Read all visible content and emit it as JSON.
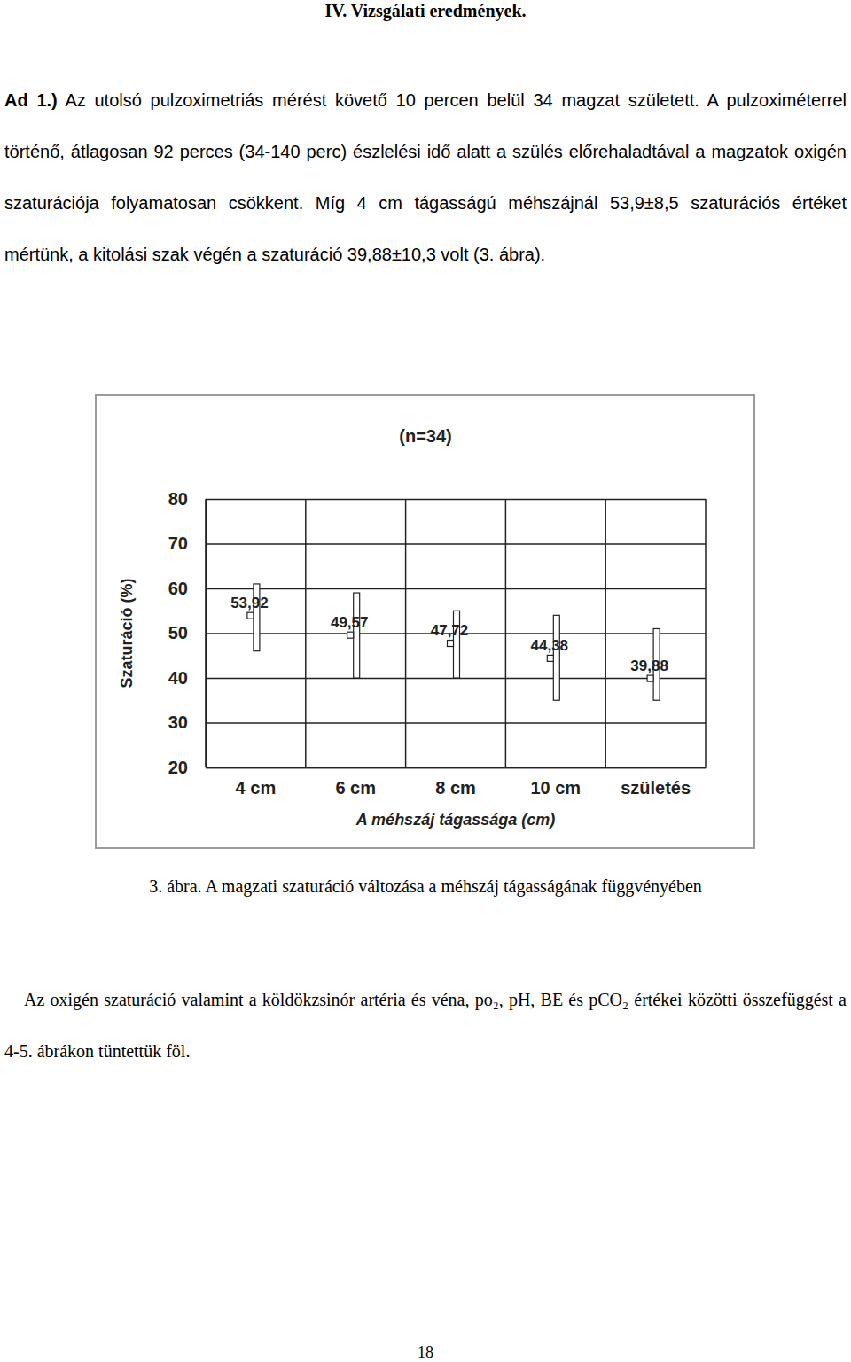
{
  "heading": "IV. Vizsgálati eredmények.",
  "paragraph1": {
    "lead": "Ad 1.)",
    "text": "Az utolsó pulzoximetriás mérést követő 10 percen belül 34 magzat született. A pulzoximéterrel történő, átlagosan 92 perces (34-140 perc) észlelési idő alatt a szülés előrehaladtával a magzatok oxigén szaturációja folyamatosan csökkent. Míg 4 cm tágasságú méhszájnál 53,9±8,5 szaturációs értéket mértünk, a kitolási szak végén a szaturáció 39,88±10,3 volt (3. ábra)."
  },
  "chart_data": {
    "type": "range_bar",
    "title": "(n=34)",
    "x_label": "A méhszáj tágassága (cm)",
    "y_label": "Szaturáció (%)",
    "categories": [
      "4 cm",
      "6 cm",
      "8 cm",
      "10 cm",
      "születés"
    ],
    "values": [
      53.92,
      49.57,
      47.72,
      44.38,
      39.88
    ],
    "value_labels": [
      "53,92",
      "49,57",
      "47,72",
      "44,38",
      "39,88"
    ],
    "lows": [
      46,
      40,
      40,
      35,
      35
    ],
    "highs": [
      61,
      59,
      55,
      54,
      51
    ],
    "ylim": [
      20,
      80
    ],
    "yticks": [
      20,
      30,
      40,
      50,
      60,
      70,
      80
    ],
    "grid": true,
    "data_labels": true
  },
  "caption": "3. ábra. A magzati szaturáció változása a méhszáj tágasságának függvényében",
  "paragraph2": "Az oxigén szaturáció valamint a köldökzsinór artéria és véna, po₂, pH, BE és pCO₂ értékei közötti összefüggést a 4-5. ábrákon tüntettük föl.",
  "page_number": 18
}
